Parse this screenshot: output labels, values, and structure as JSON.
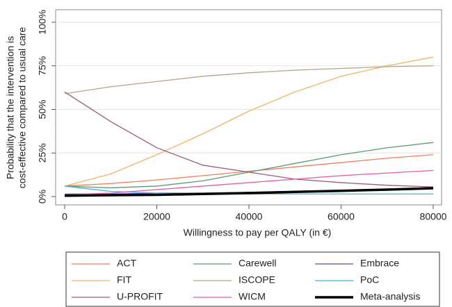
{
  "chart_data": {
    "type": "line",
    "xlabel": "Willingness to pay per QALY (in €)",
    "ylabel": [
      "Probability that the intervention is",
      "cost-effective compared to usual care"
    ],
    "x": [
      0,
      10000,
      20000,
      30000,
      40000,
      50000,
      60000,
      70000,
      80000
    ],
    "xlim": [
      0,
      80000
    ],
    "xticks": [
      0,
      20000,
      40000,
      60000,
      80000
    ],
    "ylim": [
      0,
      100
    ],
    "yticks": [
      {
        "value": 0,
        "label": "0%"
      },
      {
        "value": 25,
        "label": "25%"
      },
      {
        "value": 50,
        "label": "50%"
      },
      {
        "value": 75,
        "label": "75%"
      },
      {
        "value": 100,
        "label": "100%"
      }
    ],
    "grid": true,
    "series": [
      {
        "name": "ACT",
        "color": "#f07e5a",
        "width": 1.3,
        "values": [
          6,
          7.5,
          9.5,
          12,
          14.5,
          17,
          19.5,
          22,
          24
        ]
      },
      {
        "name": "Carewell",
        "color": "#5a9a72",
        "width": 1.3,
        "values": [
          6,
          5,
          6,
          9,
          14,
          19,
          24,
          28,
          31
        ]
      },
      {
        "name": "Embrace",
        "color": "#5a4fa8",
        "width": 1.3,
        "values": [
          1.5,
          1.5,
          2,
          2,
          2.5,
          3,
          3.5,
          4,
          5
        ]
      },
      {
        "name": "FIT",
        "color": "#f5b266",
        "width": 1.3,
        "values": [
          6,
          13,
          24,
          36,
          49,
          60,
          69,
          75,
          80
        ]
      },
      {
        "name": "ISCOPE",
        "color": "#b3a48a",
        "width": 1.3,
        "values": [
          59,
          63,
          66,
          69,
          71,
          72.5,
          73.5,
          74.5,
          75
        ]
      },
      {
        "name": "PoC",
        "color": "#3ab2e8",
        "width": 1.3,
        "values": [
          6,
          3,
          2,
          2,
          1.5,
          1.5,
          1.5,
          1.5,
          1.5
        ]
      },
      {
        "name": "U-PROFIT",
        "color": "#a05a7a",
        "width": 1.3,
        "values": [
          60,
          43,
          28,
          18,
          14,
          10,
          8,
          6.5,
          5.5
        ]
      },
      {
        "name": "WICM",
        "color": "#e85aa8",
        "width": 1.3,
        "values": [
          1,
          2,
          4,
          6,
          8,
          10,
          12,
          13.5,
          15
        ]
      },
      {
        "name": "Meta-analysis",
        "color": "#000000",
        "width": 3.5,
        "values": [
          0.5,
          0.8,
          1,
          1.5,
          2,
          2.7,
          3.3,
          4,
          4.8
        ]
      }
    ]
  }
}
